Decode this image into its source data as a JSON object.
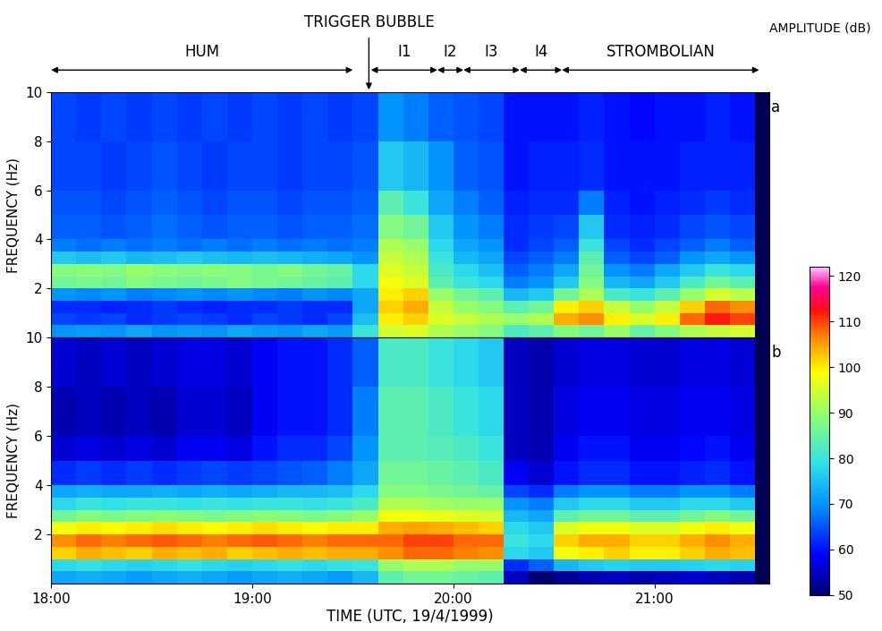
{
  "chart_data": [
    {
      "type": "heatmap",
      "panel": "a",
      "tick_labels": "y",
      "ylabel": "FREQUENCY (Hz)",
      "xlim": [
        18,
        21.57
      ],
      "xticks": [
        {
          "value": 18,
          "label": "18:00"
        },
        {
          "value": 19,
          "label": "19:00"
        },
        {
          "value": 20,
          "label": "20:00"
        },
        {
          "value": 21,
          "label": "21:00"
        }
      ],
      "ylim": [
        0,
        10
      ],
      "yticks": [
        2,
        4,
        6,
        8,
        10
      ],
      "annotations": [
        {
          "text": "HUM",
          "start": 18.0,
          "end": 19.5
        },
        {
          "text": "I1",
          "start": 19.59,
          "end": 19.92
        },
        {
          "text": "I2",
          "start": 19.92,
          "end": 20.05
        },
        {
          "text": "I3",
          "start": 20.05,
          "end": 20.33
        },
        {
          "text": "I4",
          "start": 20.33,
          "end": 20.54
        },
        {
          "text": "STROMBOLIAN",
          "start": 20.54,
          "end": 21.52
        }
      ],
      "trigger": {
        "text": "TRIGGER BUBBLE",
        "x": 19.58
      },
      "x_edges": [
        18.0,
        18.125,
        18.25,
        18.375,
        18.5,
        18.625,
        18.75,
        18.875,
        19.0,
        19.125,
        19.25,
        19.375,
        19.5,
        19.625,
        19.75,
        19.875,
        20.0,
        20.125,
        20.25,
        20.375,
        20.5,
        20.625,
        20.75,
        20.875,
        21.0,
        21.125,
        21.25,
        21.375,
        21.5
      ],
      "y_edges": [
        0,
        0.5,
        1,
        1.5,
        2,
        2.5,
        3,
        3.5,
        4,
        5,
        6,
        8,
        10
      ],
      "cells": [
        [
          70,
          71,
          70,
          72,
          70,
          71,
          70,
          72,
          71,
          70,
          72,
          71,
          80,
          95,
          96,
          92,
          90,
          88,
          82,
          84,
          88,
          86,
          90,
          85,
          88,
          92,
          94,
          95
        ],
        [
          64,
          63,
          64,
          62,
          63,
          64,
          63,
          62,
          64,
          63,
          62,
          64,
          75,
          100,
          102,
          96,
          94,
          92,
          90,
          92,
          104,
          106,
          100,
          96,
          100,
          108,
          112,
          110
        ],
        [
          62,
          62,
          61,
          62,
          63,
          62,
          61,
          62,
          62,
          63,
          62,
          62,
          72,
          102,
          104,
          94,
          90,
          88,
          84,
          86,
          100,
          102,
          94,
          90,
          94,
          102,
          108,
          106
        ],
        [
          70,
          69,
          70,
          68,
          69,
          70,
          69,
          70,
          69,
          68,
          70,
          69,
          72,
          100,
          102,
          90,
          86,
          84,
          74,
          76,
          86,
          92,
          82,
          80,
          84,
          90,
          95,
          93
        ],
        [
          86,
          87,
          86,
          88,
          87,
          86,
          87,
          88,
          87,
          86,
          85,
          84,
          78,
          98,
          96,
          84,
          80,
          78,
          68,
          70,
          76,
          88,
          74,
          72,
          76,
          82,
          86,
          84
        ],
        [
          88,
          89,
          88,
          90,
          89,
          88,
          89,
          88,
          87,
          88,
          86,
          85,
          78,
          96,
          94,
          82,
          78,
          75,
          66,
          68,
          72,
          86,
          70,
          68,
          72,
          76,
          80,
          78
        ],
        [
          76,
          75,
          76,
          74,
          75,
          76,
          75,
          74,
          75,
          74,
          73,
          72,
          70,
          94,
          92,
          80,
          74,
          72,
          64,
          66,
          68,
          84,
          66,
          64,
          66,
          70,
          72,
          70
        ],
        [
          68,
          67,
          68,
          67,
          68,
          67,
          68,
          67,
          68,
          67,
          68,
          67,
          68,
          92,
          90,
          78,
          72,
          70,
          62,
          64,
          66,
          80,
          64,
          62,
          64,
          66,
          68,
          66
        ],
        [
          66,
          66,
          65,
          66,
          67,
          66,
          65,
          66,
          66,
          65,
          66,
          66,
          67,
          88,
          86,
          76,
          70,
          68,
          62,
          63,
          64,
          76,
          62,
          61,
          62,
          64,
          65,
          64
        ],
        [
          65,
          65,
          64,
          65,
          66,
          65,
          64,
          65,
          65,
          64,
          65,
          65,
          66,
          84,
          80,
          72,
          68,
          66,
          61,
          62,
          62,
          68,
          61,
          60,
          61,
          62,
          63,
          62
        ],
        [
          64,
          64,
          63,
          64,
          65,
          64,
          63,
          64,
          64,
          63,
          64,
          64,
          65,
          76,
          74,
          70,
          66,
          65,
          60,
          61,
          61,
          62,
          60,
          60,
          60,
          61,
          61,
          61
        ],
        [
          64,
          63,
          64,
          63,
          64,
          63,
          64,
          63,
          64,
          63,
          64,
          63,
          64,
          70,
          68,
          66,
          65,
          64,
          60,
          60,
          60,
          61,
          60,
          59,
          60,
          60,
          61,
          60
        ]
      ]
    },
    {
      "type": "heatmap",
      "panel": "b",
      "ylabel": "FREQUENCY (Hz)",
      "xlabel": "TIME (UTC, 19/4/1999)",
      "xlim": [
        18,
        21.57
      ],
      "xticks": [
        {
          "value": 18,
          "label": "18:00"
        },
        {
          "value": 19,
          "label": "19:00"
        },
        {
          "value": 20,
          "label": "20:00"
        },
        {
          "value": 21,
          "label": "21:00"
        }
      ],
      "ylim": [
        0,
        10
      ],
      "yticks": [
        2,
        4,
        6,
        8,
        10
      ],
      "x_edges": [
        18.0,
        18.125,
        18.25,
        18.375,
        18.5,
        18.625,
        18.75,
        18.875,
        19.0,
        19.125,
        19.25,
        19.375,
        19.5,
        19.625,
        19.75,
        19.875,
        20.0,
        20.125,
        20.25,
        20.375,
        20.5,
        20.625,
        20.75,
        20.875,
        21.0,
        21.125,
        21.25,
        21.375,
        21.5
      ],
      "y_edges": [
        0,
        0.5,
        1,
        1.5,
        2,
        2.5,
        3,
        3.5,
        4,
        5,
        6,
        8,
        10
      ],
      "cells": [
        [
          72,
          73,
          72,
          71,
          72,
          73,
          72,
          71,
          72,
          73,
          72,
          71,
          74,
          84,
          86,
          86,
          85,
          84,
          55,
          50,
          52,
          54,
          55,
          54,
          55,
          56,
          55,
          54
        ],
        [
          78,
          79,
          78,
          77,
          78,
          79,
          78,
          77,
          78,
          79,
          78,
          79,
          80,
          90,
          92,
          92,
          90,
          90,
          62,
          66,
          74,
          76,
          77,
          76,
          76,
          77,
          78,
          77
        ],
        [
          102,
          104,
          103,
          102,
          104,
          103,
          104,
          102,
          103,
          104,
          103,
          104,
          104,
          106,
          108,
          108,
          107,
          106,
          78,
          76,
          98,
          100,
          102,
          100,
          100,
          102,
          104,
          103
        ],
        [
          106,
          108,
          107,
          108,
          109,
          108,
          107,
          108,
          109,
          108,
          107,
          108,
          108,
          108,
          110,
          110,
          108,
          108,
          80,
          78,
          102,
          104,
          104,
          102,
          102,
          104,
          106,
          104
        ],
        [
          98,
          100,
          99,
          100,
          101,
          100,
          99,
          100,
          101,
          100,
          99,
          100,
          100,
          104,
          105,
          104,
          103,
          102,
          78,
          76,
          96,
          98,
          98,
          96,
          96,
          98,
          100,
          98
        ],
        [
          86,
          88,
          87,
          88,
          89,
          88,
          87,
          88,
          89,
          88,
          87,
          88,
          90,
          98,
          98,
          97,
          96,
          95,
          74,
          72,
          84,
          86,
          86,
          84,
          84,
          86,
          88,
          86
        ],
        [
          78,
          80,
          79,
          80,
          80,
          79,
          80,
          79,
          80,
          80,
          79,
          80,
          82,
          92,
          92,
          91,
          90,
          90,
          70,
          68,
          76,
          78,
          78,
          76,
          76,
          78,
          78,
          76
        ],
        [
          72,
          73,
          72,
          72,
          73,
          72,
          73,
          72,
          73,
          74,
          74,
          75,
          78,
          88,
          88,
          87,
          86,
          85,
          64,
          62,
          68,
          70,
          70,
          68,
          68,
          70,
          70,
          68
        ],
        [
          62,
          63,
          62,
          63,
          62,
          63,
          64,
          63,
          64,
          65,
          66,
          68,
          72,
          86,
          86,
          85,
          84,
          82,
          58,
          56,
          60,
          62,
          62,
          60,
          60,
          61,
          62,
          60
        ],
        [
          56,
          57,
          56,
          57,
          56,
          58,
          58,
          57,
          60,
          62,
          62,
          64,
          70,
          84,
          84,
          83,
          82,
          80,
          55,
          54,
          58,
          60,
          60,
          58,
          58,
          59,
          60,
          58
        ],
        [
          54,
          55,
          54,
          55,
          54,
          56,
          56,
          55,
          58,
          60,
          60,
          62,
          68,
          84,
          84,
          82,
          80,
          78,
          55,
          54,
          57,
          58,
          58,
          57,
          57,
          58,
          58,
          57
        ],
        [
          56,
          55,
          56,
          55,
          56,
          57,
          57,
          56,
          58,
          60,
          60,
          62,
          66,
          82,
          82,
          80,
          78,
          76,
          55,
          54,
          56,
          57,
          57,
          56,
          56,
          57,
          57,
          56
        ]
      ],
      "colorbar": {
        "label": "AMPLITUDE (dB)",
        "range": [
          50,
          122
        ],
        "ticks": [
          50,
          60,
          70,
          80,
          90,
          100,
          110,
          120
        ]
      }
    }
  ]
}
